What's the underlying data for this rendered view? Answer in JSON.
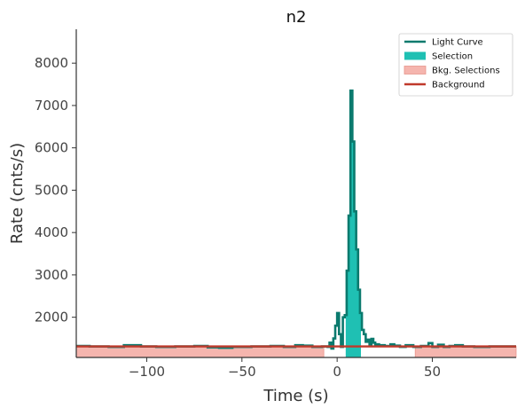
{
  "colors": {
    "light_curve": "#0b7a6e",
    "selection": "#1fc0b3",
    "bkg_selection": "#f5b5ae",
    "bkg_selection_edge": "#e8968c",
    "background": "#c0392b",
    "axis": "#333333"
  },
  "chart_data": {
    "type": "line",
    "title": "n2",
    "xlabel": "Time (s)",
    "ylabel": "Rate (cnts/s)",
    "xlim": [
      -137,
      94
    ],
    "ylim": [
      1050,
      8800
    ],
    "xticks": [
      -100,
      -50,
      0,
      50
    ],
    "xtick_labels": [
      "−100",
      "−50",
      "0",
      "50"
    ],
    "yticks": [
      2000,
      3000,
      4000,
      5000,
      6000,
      7000,
      8000
    ],
    "ytick_labels": [
      "2000",
      "3000",
      "4000",
      "5000",
      "6000",
      "7000",
      "8000"
    ],
    "grid": false,
    "legend_position": "top-right",
    "legend": [
      {
        "label": "Light Curve",
        "kind": "line",
        "color_key": "light_curve"
      },
      {
        "label": "Selection",
        "kind": "patch",
        "color_key": "selection"
      },
      {
        "label": "Bkg. Selections",
        "kind": "patch",
        "color_key": "bkg_selection"
      },
      {
        "label": "Background",
        "kind": "line",
        "color_key": "background"
      }
    ],
    "selection_interval": [
      4.5,
      12.5
    ],
    "bkg_intervals": [
      [
        -137,
        -7
      ],
      [
        41,
        94
      ]
    ],
    "background_level": 1310,
    "light_curve": {
      "x": [
        -137,
        -130,
        -120,
        -112,
        -103,
        -95,
        -85,
        -75,
        -68,
        -62,
        -55,
        -45,
        -35,
        -28,
        -22,
        -18,
        -13,
        -8,
        -5,
        -4,
        -3,
        -2,
        -1,
        0,
        1,
        2,
        3,
        4,
        5,
        6,
        7,
        8,
        9,
        10,
        11,
        12,
        13,
        14,
        15,
        16,
        17,
        18,
        19,
        20,
        22,
        25,
        28,
        30,
        33,
        36,
        40,
        44,
        48,
        50,
        53,
        56,
        59,
        62,
        66,
        72,
        80,
        88,
        94
      ],
      "y": [
        1320,
        1310,
        1300,
        1340,
        1310,
        1300,
        1310,
        1320,
        1290,
        1280,
        1300,
        1310,
        1320,
        1300,
        1340,
        1330,
        1300,
        1310,
        1300,
        1400,
        1260,
        1500,
        1800,
        2100,
        1600,
        1300,
        2000,
        2050,
        3100,
        4400,
        7350,
        6150,
        4500,
        3600,
        2650,
        2100,
        1700,
        1600,
        1420,
        1470,
        1360,
        1490,
        1400,
        1360,
        1340,
        1320,
        1360,
        1330,
        1300,
        1340,
        1300,
        1320,
        1390,
        1300,
        1350,
        1300,
        1320,
        1340,
        1310,
        1300,
        1310,
        1310,
        1340
      ]
    }
  }
}
